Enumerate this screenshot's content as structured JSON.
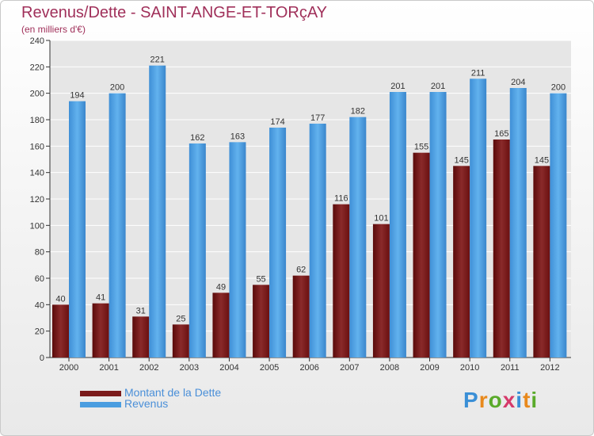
{
  "chart_data": {
    "type": "bar",
    "title": "Revenus/Dette - SAINT-ANGE-ET-TORçAY",
    "subtitle": "(en milliers d'€)",
    "categories": [
      "2000",
      "2001",
      "2002",
      "2003",
      "2004",
      "2005",
      "2006",
      "2007",
      "2008",
      "2009",
      "2010",
      "2011",
      "2012"
    ],
    "series": [
      {
        "name": "Montant de la Dette",
        "color": "#7a1a1a",
        "values": [
          40,
          41,
          31,
          25,
          49,
          55,
          62,
          116,
          101,
          155,
          145,
          165,
          145
        ]
      },
      {
        "name": "Revenus",
        "color": "#4a9de0",
        "values": [
          194,
          200,
          221,
          162,
          163,
          174,
          177,
          182,
          201,
          201,
          211,
          204,
          200
        ]
      }
    ],
    "ylim": [
      0,
      240
    ],
    "yticks": [
      0,
      20,
      40,
      60,
      80,
      100,
      120,
      140,
      160,
      180,
      200,
      220,
      240
    ],
    "grid": true,
    "legend_position": "bottom-left"
  },
  "logo": {
    "letters": [
      "P",
      "r",
      "o",
      "x",
      "i",
      "t",
      "i"
    ],
    "colors": [
      "#3a8fd6",
      "#e8891c",
      "#5aaa2a",
      "#d63a6a",
      "#3a8fd6",
      "#e8891c",
      "#5aaa2a"
    ]
  }
}
